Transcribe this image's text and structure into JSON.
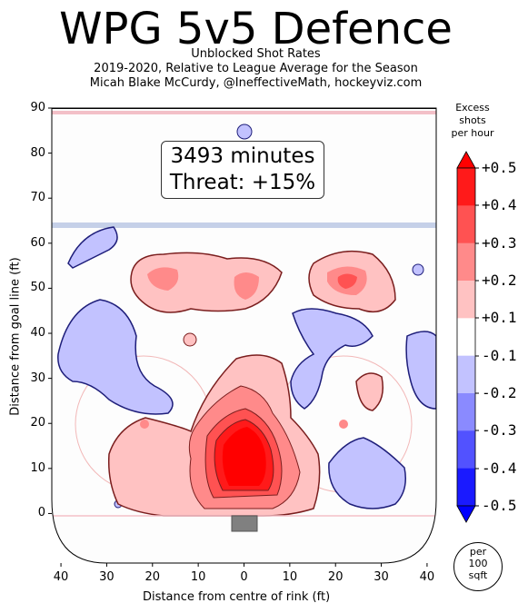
{
  "header": {
    "title": "WPG 5v5 Defence",
    "subtitle1": "Unblocked Shot Rates",
    "subtitle2": "2019-2020, Relative to League Average for the Season",
    "subtitle3": "Micah Blake McCurdy, @IneffectiveMath, hockeyviz.com"
  },
  "annotation": {
    "minutes": "3493 minutes",
    "threat": "Threat: +15%"
  },
  "colorbar": {
    "title1": "Excess",
    "title2": "shots",
    "title3": "per hour",
    "labels": [
      "+0.5",
      "+0.4",
      "+0.3",
      "+0.2",
      "+0.1",
      "-0.1",
      "-0.2",
      "-0.3",
      "-0.4",
      "-0.5"
    ],
    "colors": [
      "#ff1a1a",
      "#ff5252",
      "#ff8a8a",
      "#ffc2c2",
      "#ffffff",
      "#c2c2ff",
      "#8a8aff",
      "#5252ff",
      "#1a1aff"
    ],
    "end_high": "#ff0000",
    "end_low": "#0000ff",
    "unit1": "per",
    "unit2": "100",
    "unit3": "sqft"
  },
  "chart_data": {
    "type": "heatmap",
    "title": "WPG 5v5 Defence",
    "xlabel": "Distance from centre of rink (ft)",
    "ylabel": "Distance from goal line (ft)",
    "xlim": [
      -42,
      42
    ],
    "ylim": [
      -11,
      90
    ],
    "x_ticks": [
      -40,
      -30,
      -20,
      -10,
      0,
      10,
      20,
      30,
      40
    ],
    "x_tick_labels": [
      "40",
      "30",
      "20",
      "10",
      "0",
      "10",
      "20",
      "30",
      "40"
    ],
    "y_ticks": [
      0,
      10,
      20,
      30,
      40,
      50,
      60,
      70,
      80,
      90
    ],
    "y_tick_labels": [
      "0",
      "10",
      "20",
      "30",
      "40",
      "50",
      "60",
      "70",
      "80",
      "90"
    ],
    "colors": {
      "excess": "#ff0000",
      "deficit": "#0000ff",
      "blue_line": "#aabbdd",
      "red_line": "#f0a0a0"
    },
    "regions": [
      {
        "label": "slot",
        "sign": "excess",
        "level": 5,
        "center": [
          0,
          12
        ]
      },
      {
        "label": "left-point",
        "sign": "excess",
        "level": 2,
        "center": [
          -20,
          52
        ]
      },
      {
        "label": "right-point",
        "sign": "excess",
        "level": 2,
        "center": [
          22,
          52
        ]
      },
      {
        "label": "left-wall",
        "sign": "deficit",
        "level": 1,
        "center": [
          -33,
          35
        ]
      },
      {
        "label": "right-low",
        "sign": "deficit",
        "level": 1,
        "center": [
          28,
          10
        ]
      },
      {
        "label": "top-left",
        "sign": "deficit",
        "level": 1,
        "center": [
          -35,
          60
        ]
      }
    ]
  }
}
